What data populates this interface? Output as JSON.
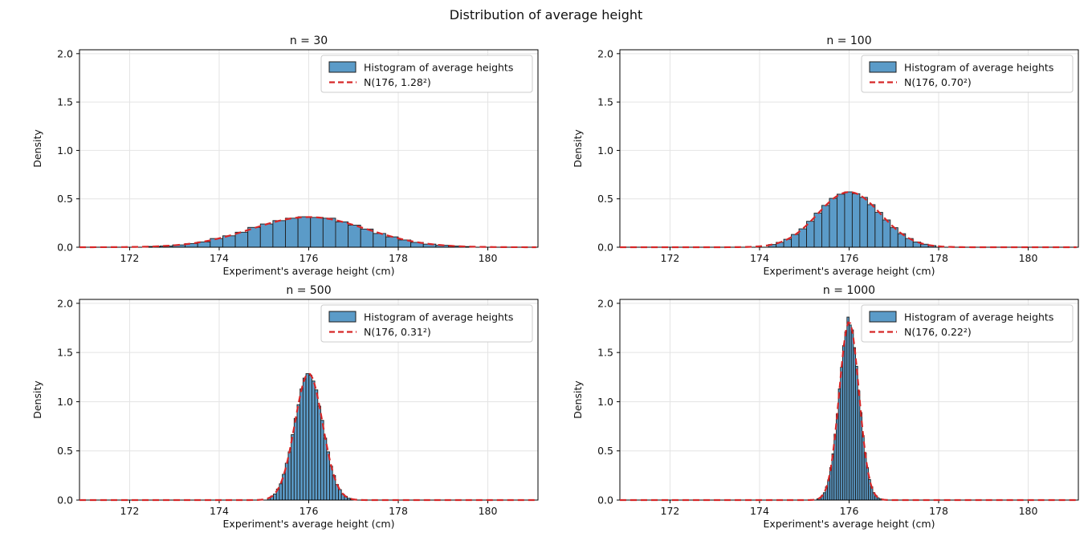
{
  "figure": {
    "title": "Distribution of average height",
    "colors": {
      "bar_fill": "#5b9bc8",
      "bar_edge": "#1d1d1d",
      "curve": "#d62728",
      "grid": "#e4e4e4",
      "spine": "#000000",
      "text": "#111111",
      "legend_border": "#cccccc",
      "background": "#ffffff"
    }
  },
  "axes_common": {
    "xlabel": "Experiment's average height (cm)",
    "ylabel": "Density",
    "xlim": [
      170.88,
      181.12
    ],
    "ylim": [
      0,
      2.04
    ],
    "xtick_values": [
      172,
      174,
      176,
      178,
      180
    ],
    "xtick_labels": [
      "172",
      "174",
      "176",
      "178",
      "180"
    ],
    "ytick_values": [
      0,
      0.5,
      1.0,
      1.5,
      2.0
    ],
    "ytick_labels": [
      "0.0",
      "0.5",
      "1.0",
      "1.5",
      "2.0"
    ],
    "grid": true,
    "legend_position": "upper right"
  },
  "chart_data": [
    {
      "type": "histogram+line",
      "title": "n = 30",
      "sample_size": 30,
      "legend_hist": "Histogram of average heights",
      "legend_curve": "N(176, 1.28²)",
      "normal": {
        "mu": 176,
        "sigma": 1.28
      },
      "bins": {
        "start": 172.4,
        "width": 0.28
      },
      "heights": [
        0.008,
        0.013,
        0.024,
        0.038,
        0.055,
        0.09,
        0.118,
        0.155,
        0.205,
        0.24,
        0.275,
        0.3,
        0.315,
        0.308,
        0.3,
        0.262,
        0.228,
        0.188,
        0.142,
        0.107,
        0.075,
        0.05,
        0.032,
        0.02,
        0.012,
        0.007
      ]
    },
    {
      "type": "histogram+line",
      "title": "n = 100",
      "sample_size": 100,
      "legend_hist": "Histogram of average heights",
      "legend_curve": "N(176, 0.70²)",
      "normal": {
        "mu": 176,
        "sigma": 0.7
      },
      "bins": {
        "start": 174.2,
        "width": 0.17
      },
      "heights": [
        0.028,
        0.05,
        0.082,
        0.132,
        0.19,
        0.268,
        0.352,
        0.432,
        0.505,
        0.548,
        0.572,
        0.553,
        0.515,
        0.44,
        0.36,
        0.282,
        0.202,
        0.14,
        0.09,
        0.054,
        0.031,
        0.017
      ]
    },
    {
      "type": "histogram+line",
      "title": "n = 500",
      "sample_size": 500,
      "legend_hist": "Histogram of average heights",
      "legend_curve": "N(176, 0.31²)",
      "normal": {
        "mu": 176,
        "sigma": 0.31
      },
      "bins": {
        "start": 175.08,
        "width": 0.066
      },
      "heights": [
        0.02,
        0.04,
        0.062,
        0.112,
        0.165,
        0.262,
        0.375,
        0.49,
        0.665,
        0.83,
        0.97,
        1.13,
        1.24,
        1.285,
        1.27,
        1.21,
        1.12,
        0.955,
        0.81,
        0.63,
        0.49,
        0.345,
        0.25,
        0.158,
        0.106,
        0.06,
        0.038,
        0.019,
        0.012
      ]
    },
    {
      "type": "histogram+line",
      "title": "n = 1000",
      "sample_size": 1000,
      "legend_hist": "Histogram of average heights",
      "legend_curve": "N(176, 0.22²)",
      "normal": {
        "mu": 176,
        "sigma": 0.22
      },
      "bins": {
        "start": 175.28,
        "width": 0.048
      },
      "heights": [
        0.013,
        0.022,
        0.046,
        0.075,
        0.135,
        0.205,
        0.33,
        0.47,
        0.67,
        0.875,
        1.13,
        1.35,
        1.57,
        1.71,
        1.86,
        1.78,
        1.73,
        1.55,
        1.36,
        1.11,
        0.89,
        0.655,
        0.48,
        0.33,
        0.208,
        0.135,
        0.076,
        0.045,
        0.023,
        0.012
      ]
    }
  ]
}
